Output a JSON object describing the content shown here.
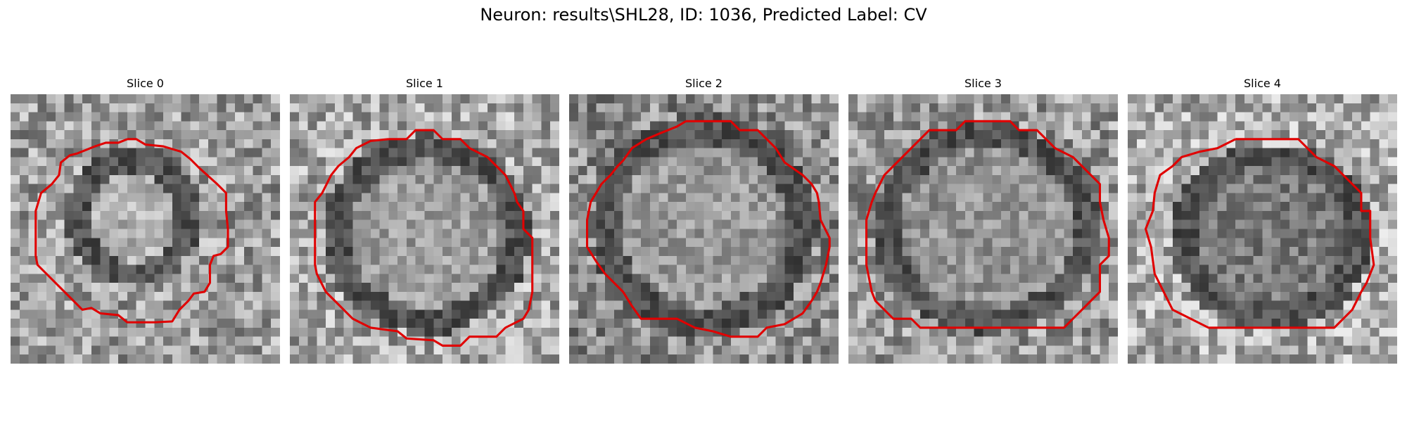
{
  "figure": {
    "title": "Neuron: results\\SHL28, ID: 1036, Predicted Label: CV"
  },
  "panels": [
    {
      "label": "Slice 0"
    },
    {
      "label": "Slice 1"
    },
    {
      "label": "Slice 2"
    },
    {
      "label": "Slice 3"
    },
    {
      "label": "Slice 4"
    }
  ],
  "contour_color": "#e00000",
  "image_style": "grayscale"
}
